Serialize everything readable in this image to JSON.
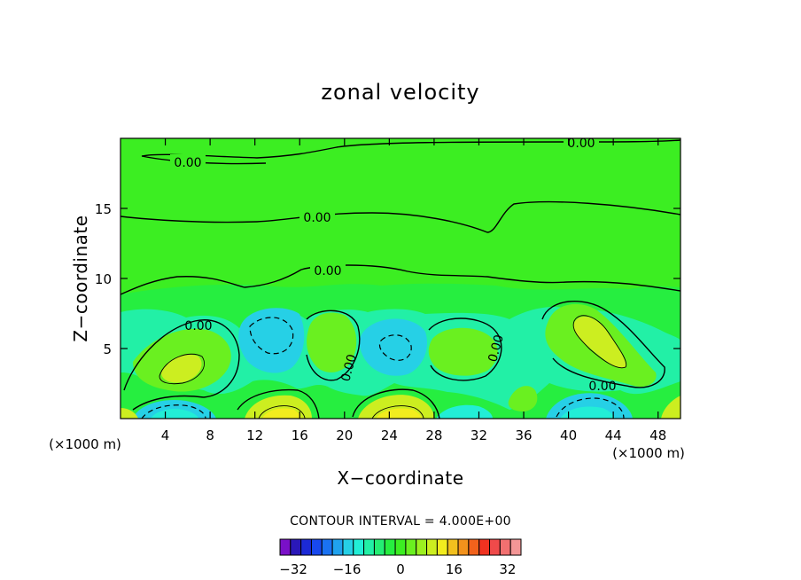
{
  "chart_data": {
    "type": "contour",
    "title": "zonal velocity",
    "xlabel": "X−coordinate",
    "ylabel": "Z−coordinate",
    "x_unit_left": "(×1000 m)",
    "x_unit_right": "(×1000 m)",
    "xlim": [
      0,
      50
    ],
    "ylim": [
      0,
      20
    ],
    "x_ticks": [
      4,
      8,
      12,
      16,
      20,
      24,
      28,
      32,
      36,
      40,
      44,
      48
    ],
    "x_tick_labels": [
      "4",
      "8",
      "12",
      "16",
      "20",
      "24",
      "28",
      "32",
      "36",
      "40",
      "44",
      "48"
    ],
    "y_ticks": [
      5,
      10,
      15
    ],
    "y_tick_labels": [
      "5",
      "10",
      "15"
    ],
    "contour_interval_text": "CONTOUR INTERVAL = 4.000E+00",
    "contour_label_text": "0.00",
    "colorbar": {
      "min": -36,
      "max": 36,
      "step": 4,
      "tick_values": [
        -32,
        -16,
        0,
        16,
        32
      ],
      "tick_labels": [
        "−32",
        "−16",
        "0",
        "16",
        "32"
      ],
      "colors": [
        "#7a10c8",
        "#2a18b8",
        "#1c2ad6",
        "#1848ee",
        "#1a72f2",
        "#20a2ee",
        "#26d0e6",
        "#22eed6",
        "#22f0a6",
        "#24ee74",
        "#26ee40",
        "#3cee22",
        "#6af020",
        "#9cf020",
        "#ccee20",
        "#f2ec1e",
        "#f2c01e",
        "#f2921c",
        "#f2621c",
        "#f03220",
        "#f04a4a",
        "#f27070",
        "#f49696"
      ]
    },
    "background_level_color": "#3cee22",
    "features": [
      {
        "kind": "positive_max",
        "x": 6,
        "z": 3.8,
        "value": 8
      },
      {
        "kind": "negative_min",
        "x": 14,
        "z": 6.5,
        "value": -8
      },
      {
        "kind": "positive_max",
        "x": 19,
        "z": 5.5,
        "value": 8
      },
      {
        "kind": "negative_min",
        "x": 24.5,
        "z": 4.8,
        "value": -8
      },
      {
        "kind": "positive_max",
        "x": 30,
        "z": 4.5,
        "value": 4
      },
      {
        "kind": "positive_max",
        "x": 42,
        "z": 5.5,
        "value": 8
      },
      {
        "kind": "positive_max",
        "x": 14,
        "z": 0.3,
        "value": 16
      },
      {
        "kind": "positive_max",
        "x": 25,
        "z": 0.3,
        "value": 16
      },
      {
        "kind": "negative_min",
        "x": 5,
        "z": 0.3,
        "value": -12
      },
      {
        "kind": "negative_min",
        "x": 42,
        "z": 0.5,
        "value": -12
      },
      {
        "kind": "negative_min",
        "x": 30.5,
        "z": 0.3,
        "value": -8
      }
    ]
  }
}
